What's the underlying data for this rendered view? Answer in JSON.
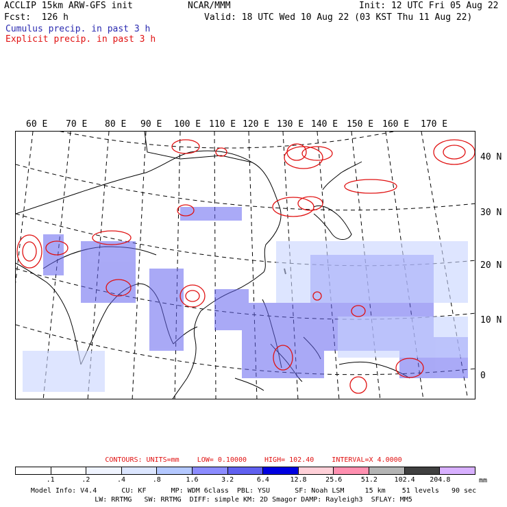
{
  "header": {
    "model_line": "ACCLIP 15km ARW-GFS init",
    "center": "NCAR/MMM",
    "init": "Init: 12 UTC Fri 05 Aug 22",
    "fcst": "Fcst:  126 h",
    "valid": "Valid: 18 UTC Wed 10 Aug 22 (03 KST Thu 11 Aug 22)",
    "cumulus_label": "Cumulus precip. in past 3 h",
    "explicit_label": "Explicit precip. in past 3 h"
  },
  "map": {
    "lon_labels": [
      "60 E",
      "70 E",
      "80 E",
      "90 E",
      "100 E",
      "110 E",
      "120 E",
      "130 E",
      "140 E",
      "150 E",
      "160 E",
      "170 E"
    ],
    "lat_labels": [
      "40 N",
      "30 N",
      "20 N",
      "10 N",
      "0"
    ]
  },
  "legend": {
    "contours": "CONTOURS:  UNITS=mm",
    "low": "LOW= 0.10000",
    "high": "HIGH=  102.40",
    "interval": "INTERVAL=X  4.0000",
    "ticks": [
      ".1",
      ".2",
      ".4",
      ".8",
      "1.6",
      "3.2",
      "6.4",
      "12.8",
      "25.6",
      "51.2",
      "102.4",
      "204.8"
    ],
    "unit": "mm",
    "colors": [
      "#ffffff",
      "#ffffff",
      "#f0f4ff",
      "#dce6ff",
      "#b4c8ff",
      "#8c8cff",
      "#6060f0",
      "#0000e0",
      "#ffd0d8",
      "#ff90b0",
      "#b4b4b4",
      "#404040",
      "#d8b0ff"
    ]
  },
  "info": {
    "line1": "Model Info: V4.4      CU: KF      MP: WDM 6class  PBL: YSU      SF: Noah LSM     15 km    51 levels   90 sec",
    "line2": "LW: RRTMG   SW: RRTMG  DIFF: simple KM: 2D Smagor DAMP: Rayleigh3  SFLAY: MM5"
  }
}
